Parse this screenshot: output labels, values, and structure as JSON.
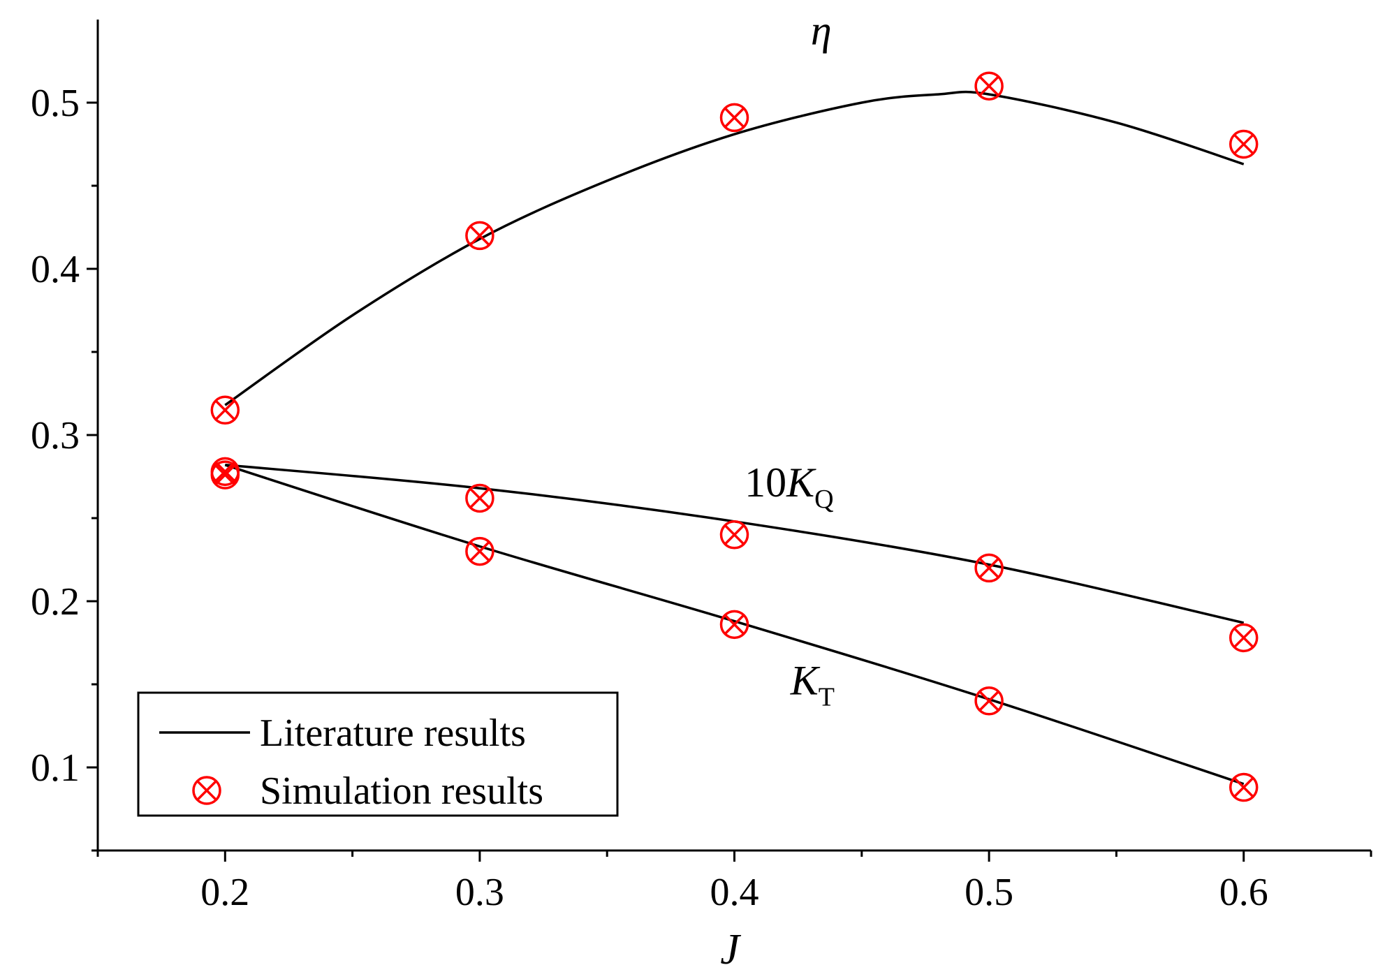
{
  "chart_data": {
    "type": "line",
    "xlabel": "J",
    "ylabel": "",
    "xlim": [
      0.15,
      0.65
    ],
    "ylim": [
      0.05,
      0.55
    ],
    "xticks": [
      "0.2",
      "0.3",
      "0.4",
      "0.5",
      "0.6"
    ],
    "yticks": [
      "0.1",
      "0.2",
      "0.3",
      "0.4",
      "0.5"
    ],
    "grid": false,
    "legend_position": "bottom-left",
    "legend": {
      "line_label": "Literature results",
      "marker_label": "Simulation results"
    },
    "colors": {
      "line": "#000000",
      "marker": "#ff0000"
    },
    "curves": [
      {
        "label_main": "η",
        "label_prefix": "",
        "label_sub": "",
        "label_at": [
          0.43,
          0.535
        ],
        "line": {
          "x": [
            0.2,
            0.25,
            0.3,
            0.35,
            0.4,
            0.45,
            0.48,
            0.5,
            0.55,
            0.6
          ],
          "y": [
            0.318,
            0.372,
            0.418,
            0.453,
            0.481,
            0.5,
            0.505,
            0.505,
            0.488,
            0.463
          ]
        },
        "points": {
          "x": [
            0.2,
            0.3,
            0.4,
            0.5,
            0.6
          ],
          "y": [
            0.315,
            0.42,
            0.491,
            0.51,
            0.475
          ]
        }
      },
      {
        "label_main": "K",
        "label_prefix": "10",
        "label_sub": "Q",
        "label_at": [
          0.404,
          0.263
        ],
        "line": {
          "x": [
            0.2,
            0.3,
            0.4,
            0.5,
            0.6
          ],
          "y": [
            0.282,
            0.268,
            0.248,
            0.222,
            0.187
          ]
        },
        "points": {
          "x": [
            0.2,
            0.3,
            0.4,
            0.5,
            0.6
          ],
          "y": [
            0.278,
            0.262,
            0.24,
            0.22,
            0.178
          ]
        }
      },
      {
        "label_main": "K",
        "label_prefix": "",
        "label_sub": "T",
        "label_at": [
          0.422,
          0.144
        ],
        "line": {
          "x": [
            0.2,
            0.3,
            0.4,
            0.5,
            0.6
          ],
          "y": [
            0.282,
            0.233,
            0.188,
            0.141,
            0.09
          ]
        },
        "points": {
          "x": [
            0.2,
            0.3,
            0.4,
            0.5,
            0.6
          ],
          "y": [
            0.276,
            0.23,
            0.186,
            0.14,
            0.088
          ]
        }
      }
    ]
  }
}
